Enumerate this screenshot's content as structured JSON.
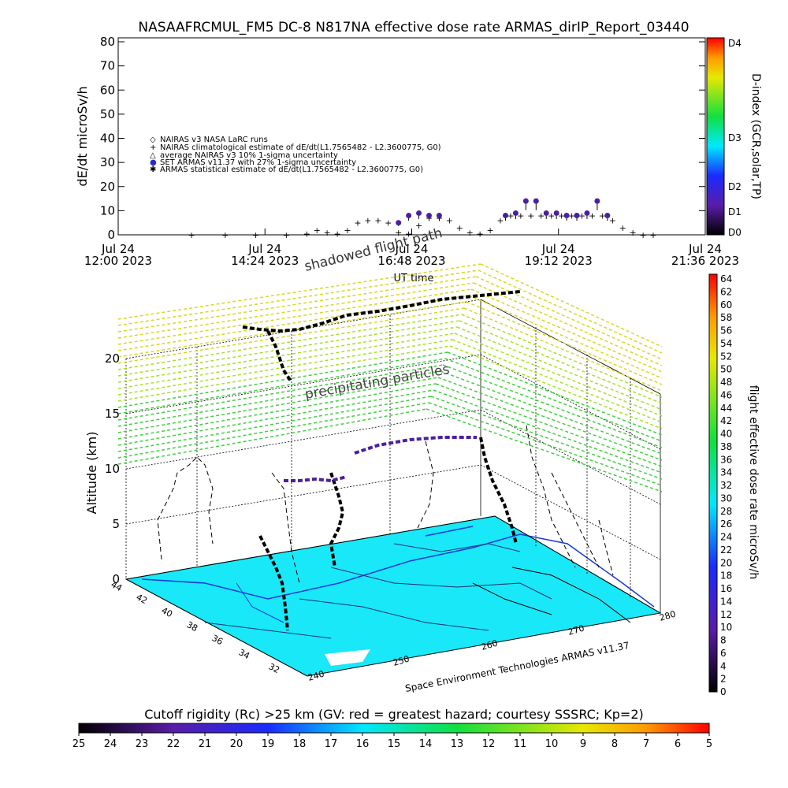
{
  "top_panel": {
    "title": "NASAAFRCMUL_FM5 DC-8    N817NA effective dose rate ARMAS_dirIP_Report_03440",
    "ylabel": "dE/dt microSv/h",
    "right_label": "D-index (GCR,solar,TP)",
    "d_index_ticks": [
      "D4",
      "D3",
      "D2",
      "D1",
      "D0"
    ],
    "legend": [
      {
        "symbol": "◇",
        "text": "NAIRAS v3 NASA LaRC runs"
      },
      {
        "symbol": "+",
        "text": "NAIRAS climatological estimate of dE/dt(L1.7565482 - L2.3600775, G0)"
      },
      {
        "symbol": "△",
        "text": "average NAIRAS v3 10% 1-sigma uncertainty"
      },
      {
        "symbol": "●",
        "text": "SET ARMAS v11.37 with 27% 1-sigma uncertainty"
      },
      {
        "symbol": "✱",
        "text": "ARMAS statistical estimate of dE/dt(L1.7565482 - L2.3600775, G0)"
      }
    ],
    "xlabel": "UT time",
    "x_ticks": [
      {
        "line1": "Jul 24",
        "line2": "12:00 2023"
      },
      {
        "line1": "Jul 24",
        "line2": "14:24 2023"
      },
      {
        "line1": "Jul 24",
        "line2": "16:48 2023"
      },
      {
        "line1": "Jul 24",
        "line2": "19:12 2023"
      },
      {
        "line1": "Jul 24",
        "line2": "21:36 2023"
      }
    ]
  },
  "bottom_panel": {
    "title_arc": "shadowed flight path",
    "layer_label": "precipitating particles",
    "zlabel": "Altitude (km)",
    "z_ticks": [
      "0",
      "5",
      "10",
      "15",
      "20"
    ],
    "lat_ticks": [
      "44",
      "42",
      "40",
      "38",
      "36",
      "34",
      "32"
    ],
    "lon_ticks": [
      "240",
      "250",
      "260",
      "270",
      "280"
    ],
    "credit": "Space Environment Technologies ARMAS v11.37",
    "right_label": "flight effective dose rate microSv/h",
    "dose_colorbar_ticks": [
      "64",
      "62",
      "60",
      "58",
      "56",
      "54",
      "52",
      "50",
      "48",
      "46",
      "44",
      "42",
      "40",
      "38",
      "36",
      "34",
      "32",
      "30",
      "28",
      "26",
      "24",
      "22",
      "20",
      "18",
      "16",
      "14",
      "12",
      "10",
      "8",
      "6",
      "4",
      "2",
      "0"
    ]
  },
  "cutoff_bar": {
    "label": "Cutoff rigidity (Rc) >25 km (GV: red = greatest hazard; courtesy SSSRC; Kp=2)",
    "ticks": [
      "25",
      "24",
      "23",
      "22",
      "21",
      "20",
      "19",
      "18",
      "17",
      "16",
      "15",
      "14",
      "13",
      "12",
      "11",
      "10",
      "9",
      "8",
      "7",
      "6",
      "5"
    ]
  },
  "colors": {
    "map_fill": "#18e8f8",
    "armas_points": "#4b1fa0",
    "nairas_points": "#000000"
  },
  "chart_data": [
    {
      "type": "scatter",
      "title": "NASAAFRCMUL_FM5 DC-8    N817NA effective dose rate ARMAS_dirIP_Report_03440",
      "xlabel": "UT time",
      "ylabel": "dE/dt microSv/h",
      "xlim": [
        "2023-07-24 12:00",
        "2023-07-24 21:36"
      ],
      "ylim": [
        0,
        80
      ],
      "series": [
        {
          "name": "NAIRAS climatological estimate of dE/dt(L1.7565482 - L2.3600775, G0)",
          "color": "#000000",
          "x": [
            "13:12",
            "13:45",
            "14:15",
            "14:45",
            "15:05",
            "15:15",
            "15:25",
            "15:35",
            "15:45",
            "15:55",
            "16:05",
            "16:15",
            "16:25",
            "16:35",
            "16:45",
            "16:55",
            "17:05",
            "17:15",
            "17:25",
            "17:35",
            "17:45",
            "17:55",
            "18:05",
            "18:15",
            "18:25",
            "18:35",
            "18:45",
            "18:55",
            "19:05",
            "19:15",
            "19:25",
            "19:35",
            "19:45",
            "19:55",
            "20:05",
            "20:15",
            "20:25",
            "20:35",
            "20:45"
          ],
          "y": [
            0,
            0,
            0,
            0,
            0.5,
            2,
            1,
            0.5,
            2,
            5,
            6,
            6,
            5,
            1,
            0.5,
            4,
            7,
            7,
            6,
            3,
            1,
            0.5,
            2,
            6,
            8,
            8,
            8,
            8,
            8,
            8,
            8,
            8,
            8,
            8,
            6,
            3,
            1,
            0,
            0
          ]
        },
        {
          "name": "SET ARMAS v11.37 with 27% 1-sigma uncertainty",
          "color": "#4b1fa0",
          "x": [
            "16:35",
            "16:45",
            "16:55",
            "17:05",
            "17:15",
            "18:20",
            "18:30",
            "18:40",
            "18:50",
            "19:00",
            "19:10",
            "19:20",
            "19:30",
            "19:40",
            "19:50",
            "20:00"
          ],
          "y": [
            5,
            8,
            9,
            8,
            8,
            8,
            9,
            14,
            14,
            9,
            9,
            8,
            8,
            9,
            14,
            8
          ]
        }
      ]
    },
    {
      "type": "heatmap",
      "title": "Cutoff rigidity (Rc) >25 km (GV: red = greatest hazard; courtesy SSSRC; Kp=2)",
      "categories": [
        "25",
        "24",
        "23",
        "22",
        "21",
        "20",
        "19",
        "18",
        "17",
        "16",
        "15",
        "14",
        "13",
        "12",
        "11",
        "10",
        "9",
        "8",
        "7",
        "6",
        "5"
      ]
    }
  ]
}
